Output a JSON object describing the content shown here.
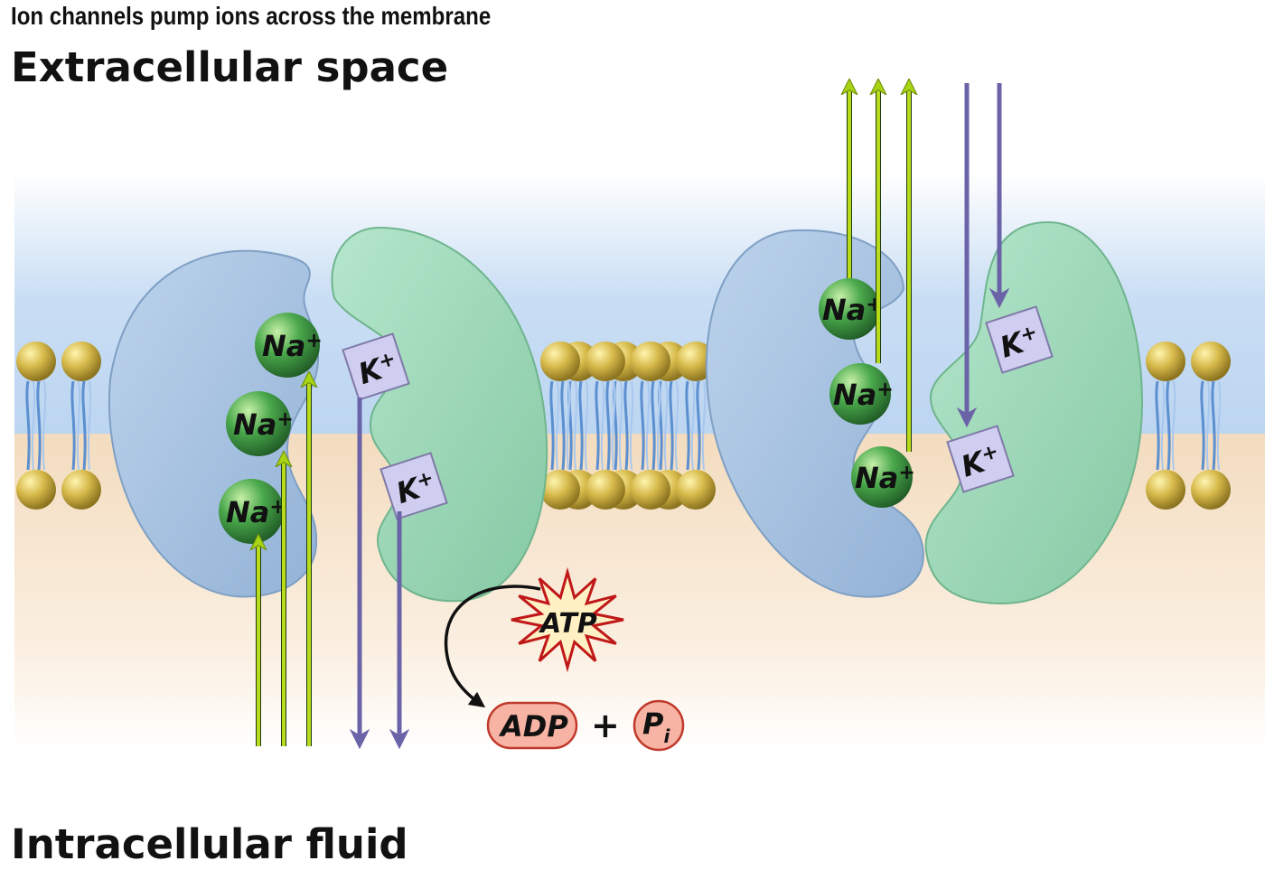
{
  "caption": "Ion channels pump ions across the membrane",
  "regions": {
    "extracellular": "Extracellular space",
    "intracellular": "Intracellular fluid"
  },
  "ions": {
    "sodium": "Na",
    "potassium": "K",
    "plus": "+"
  },
  "energy": {
    "atp": "ATP",
    "adp": "ADP",
    "plus": "+",
    "phosphate": "P",
    "phosphate_sub": "i"
  },
  "colors": {
    "extracellular": "#b9d3ee",
    "intracellular": "#f6e3c8",
    "protein_blue": "#a9c3df",
    "protein_green": "#9fd8b8",
    "sodium_ball": "#3f9a4a",
    "potassium_box": "#cfcdf0",
    "arrow_sodium": "#b8dc1c",
    "arrow_potassium": "#6b63a8",
    "atp_star": "#fff1c4",
    "adp_oval": "#f7b3a3",
    "lipid_head": "#c7aa3a",
    "lipid_tail": "#5b8fd0"
  }
}
